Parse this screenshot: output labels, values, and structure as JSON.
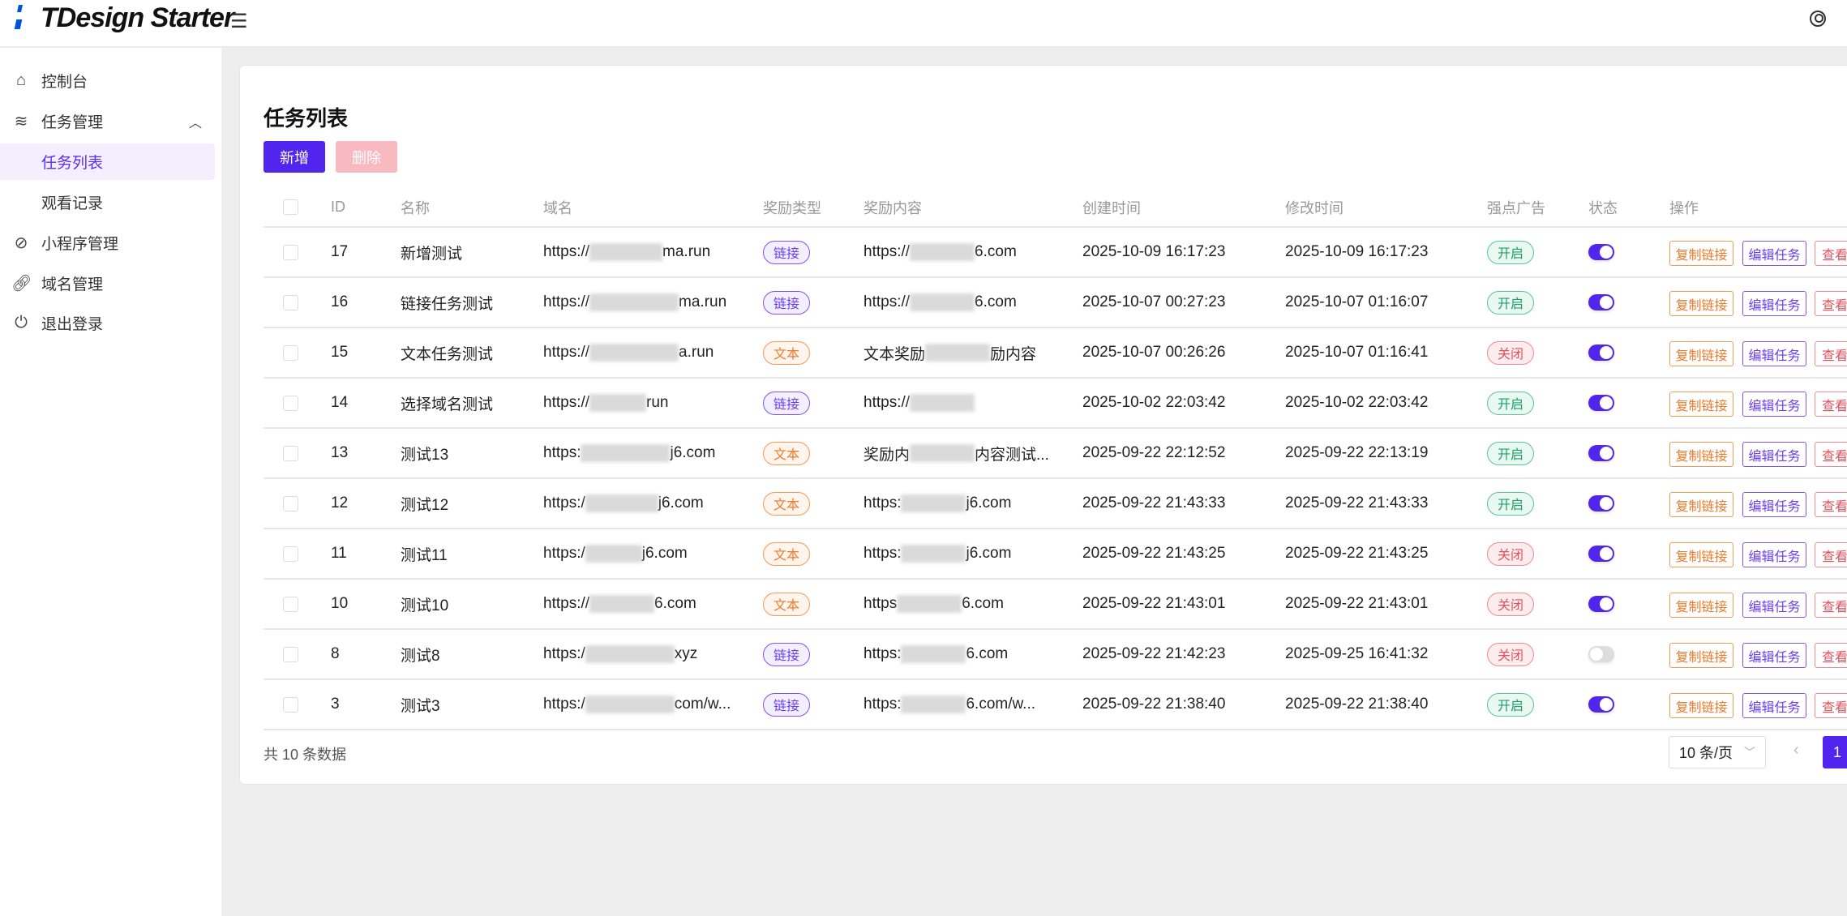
{
  "header": {
    "app_title": "TDesign Starter",
    "menu_icon": "menu-icon",
    "user_icon": "user-circle-icon"
  },
  "sidebar": {
    "items": [
      {
        "label": "控制台",
        "icon": "home-icon"
      },
      {
        "label": "任务管理",
        "icon": "layers-icon",
        "expanded": true
      },
      {
        "label": "任务列表",
        "active": true
      },
      {
        "label": "观看记录"
      },
      {
        "label": "小程序管理",
        "icon": "link-circle-icon"
      },
      {
        "label": "域名管理",
        "icon": "link-icon"
      },
      {
        "label": "退出登录",
        "icon": "power-icon"
      }
    ]
  },
  "main": {
    "title": "任务列表",
    "add_label": "新增",
    "delete_label": "删除",
    "columns": [
      "ID",
      "名称",
      "域名",
      "奖励类型",
      "奖励内容",
      "创建时间",
      "修改时间",
      "强点广告",
      "状态",
      "操作"
    ],
    "actions": {
      "copy": "复制链接",
      "edit": "编辑任务",
      "view": "查看"
    },
    "rows": [
      {
        "id": "17",
        "name": "新增测试",
        "domain_pre": "https://",
        "domain_post": "ma.run",
        "type": "链接",
        "type_kind": "link",
        "content_pre": "https://",
        "content_post": "6.com",
        "created": "2025-10-09 16:17:23",
        "modified": "2025-10-09 16:17:23",
        "ad": "开启",
        "ad_on": true,
        "status_on": true
      },
      {
        "id": "16",
        "name": "链接任务测试",
        "domain_pre": "https://",
        "domain_post": "ma.run",
        "type": "链接",
        "type_kind": "link",
        "content_pre": "https://",
        "content_post": "6.com",
        "created": "2025-10-07 00:27:23",
        "modified": "2025-10-07 01:16:07",
        "ad": "开启",
        "ad_on": true,
        "status_on": true
      },
      {
        "id": "15",
        "name": "文本任务测试",
        "domain_pre": "https://",
        "domain_post": "a.run",
        "type": "文本",
        "type_kind": "text",
        "content_pre": "文本奖励",
        "content_post": "励内容",
        "created": "2025-10-07 00:26:26",
        "modified": "2025-10-07 01:16:41",
        "ad": "关闭",
        "ad_on": false,
        "status_on": true
      },
      {
        "id": "14",
        "name": "选择域名测试",
        "domain_pre": "https://",
        "domain_post": "run",
        "type": "链接",
        "type_kind": "link",
        "content_pre": "https://",
        "content_post": "",
        "created": "2025-10-02 22:03:42",
        "modified": "2025-10-02 22:03:42",
        "ad": "开启",
        "ad_on": true,
        "status_on": true
      },
      {
        "id": "13",
        "name": "测试13",
        "domain_pre": "https:",
        "domain_post": "j6.com",
        "type": "文本",
        "type_kind": "text",
        "content_pre": "奖励内",
        "content_post": "内容测试...",
        "created": "2025-09-22 22:12:52",
        "modified": "2025-09-22 22:13:19",
        "ad": "开启",
        "ad_on": true,
        "status_on": true
      },
      {
        "id": "12",
        "name": "测试12",
        "domain_pre": "https:/",
        "domain_post": "j6.com",
        "type": "文本",
        "type_kind": "text",
        "content_pre": "https:",
        "content_post": "j6.com",
        "created": "2025-09-22 21:43:33",
        "modified": "2025-09-22 21:43:33",
        "ad": "开启",
        "ad_on": true,
        "status_on": true
      },
      {
        "id": "11",
        "name": "测试11",
        "domain_pre": "https:/",
        "domain_post": "j6.com",
        "type": "文本",
        "type_kind": "text",
        "content_pre": "https:",
        "content_post": "j6.com",
        "created": "2025-09-22 21:43:25",
        "modified": "2025-09-22 21:43:25",
        "ad": "关闭",
        "ad_on": false,
        "status_on": true
      },
      {
        "id": "10",
        "name": "测试10",
        "domain_pre": "https://",
        "domain_post": "6.com",
        "type": "文本",
        "type_kind": "text",
        "content_pre": "https",
        "content_post": "6.com",
        "created": "2025-09-22 21:43:01",
        "modified": "2025-09-22 21:43:01",
        "ad": "关闭",
        "ad_on": false,
        "status_on": true
      },
      {
        "id": "8",
        "name": "测试8",
        "domain_pre": "https:/",
        "domain_post": "xyz",
        "type": "链接",
        "type_kind": "link",
        "content_pre": "https:",
        "content_post": "6.com",
        "created": "2025-09-22 21:42:23",
        "modified": "2025-09-25 16:41:32",
        "ad": "关闭",
        "ad_on": false,
        "status_on": false
      },
      {
        "id": "3",
        "name": "测试3",
        "domain_pre": "https:/",
        "domain_post": "com/w...",
        "type": "链接",
        "type_kind": "link",
        "content_pre": "https:",
        "content_post": "6.com/w...",
        "created": "2025-09-22 21:38:40",
        "modified": "2025-09-22 21:38:40",
        "ad": "开启",
        "ad_on": true,
        "status_on": true
      }
    ],
    "footer": {
      "total": "共 10 条数据",
      "page_size": "10 条/页",
      "current_page": "1"
    }
  },
  "colors": {
    "primary": "#5225ef",
    "danger_light": "#f8b9c0",
    "success": "#1d9f6b",
    "warning": "#ee7a2c",
    "error": "#e0505e"
  }
}
